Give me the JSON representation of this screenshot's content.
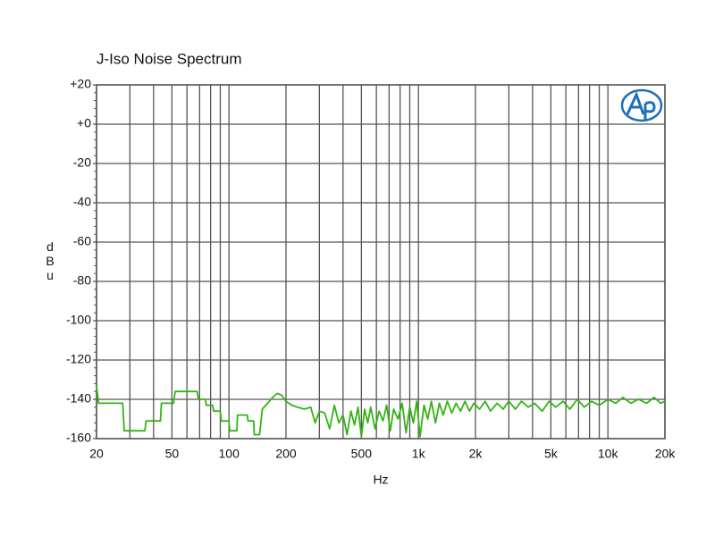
{
  "chart_data": {
    "type": "line",
    "title": "J-Iso Noise Spectrum",
    "x_label": "Hz",
    "y_label": "dBu",
    "log_x": true,
    "grid": true,
    "xlim": [
      20,
      20000
    ],
    "ylim": [
      -160,
      20
    ],
    "xticks": [
      20,
      50,
      100,
      200,
      500,
      {
        "value": 1000,
        "label": "1k"
      },
      {
        "value": 2000,
        "label": "2k"
      },
      {
        "value": 5000,
        "label": "5k"
      },
      {
        "value": 10000,
        "label": "10k"
      },
      {
        "value": 20000,
        "label": "20k"
      }
    ],
    "x_minor_ticks": [
      30,
      40,
      60,
      70,
      80,
      90,
      300,
      400,
      600,
      700,
      800,
      900,
      3000,
      4000,
      6000,
      7000,
      8000,
      9000
    ],
    "yticks": [
      {
        "value": 20,
        "label": "+20"
      },
      {
        "value": 0,
        "label": "+0"
      },
      -20,
      -40,
      -60,
      -80,
      -100,
      -120,
      -140,
      -160
    ],
    "series": [
      {
        "color": "#33b414",
        "x": [
          20,
          20.5,
          27.5,
          28,
          36,
          36.5,
          43.5,
          44,
          51,
          52,
          68,
          69,
          75,
          76,
          82,
          83,
          90,
          91,
          100,
          101,
          110,
          111,
          125,
          126,
          135,
          136,
          145,
          150,
          160,
          170,
          180,
          190,
          200,
          215,
          230,
          250,
          270,
          285,
          300,
          320,
          340,
          360,
          380,
          400,
          420,
          440,
          460,
          480,
          500,
          520,
          540,
          560,
          590,
          620,
          650,
          680,
          710,
          740,
          780,
          820,
          860,
          900,
          940,
          980,
          1020,
          1070,
          1120,
          1170,
          1230,
          1290,
          1350,
          1420,
          1500,
          1580,
          1670,
          1760,
          1860,
          1960,
          2100,
          2250,
          2400,
          2600,
          2800,
          3000,
          3250,
          3500,
          3800,
          4100,
          4500,
          4900,
          5300,
          5800,
          6300,
          6900,
          7500,
          8200,
          9000,
          10000,
          11000,
          12000,
          13200,
          14500,
          16000,
          17500,
          19000,
          20000
        ],
        "values": [
          -133,
          -142,
          -142,
          -156,
          -156,
          -151,
          -151,
          -142,
          -142,
          -136,
          -136,
          -140,
          -140,
          -143,
          -143,
          -146,
          -146,
          -151,
          -151,
          -156,
          -156,
          -148,
          -148,
          -151,
          -151,
          -158,
          -158,
          -145,
          -142,
          -139,
          -137,
          -138,
          -141,
          -143,
          -144,
          -145,
          -144,
          -152,
          -146,
          -147,
          -155,
          -143,
          -152,
          -148,
          -158,
          -146,
          -153,
          -144,
          -159,
          -145,
          -152,
          -144,
          -155,
          -146,
          -151,
          -143,
          -156,
          -145,
          -150,
          -142,
          -157,
          -144,
          -152,
          -141,
          -159,
          -143,
          -150,
          -141,
          -152,
          -142,
          -148,
          -141,
          -147,
          -142,
          -146,
          -141,
          -146,
          -142,
          -145,
          -141,
          -146,
          -142,
          -145,
          -141,
          -145,
          -141,
          -144,
          -142,
          -146,
          -141,
          -144,
          -141,
          -145,
          -140,
          -144,
          -141,
          -143,
          -140,
          -142,
          -139,
          -142,
          -140,
          -142,
          -139,
          -142,
          -141
        ]
      }
    ]
  }
}
